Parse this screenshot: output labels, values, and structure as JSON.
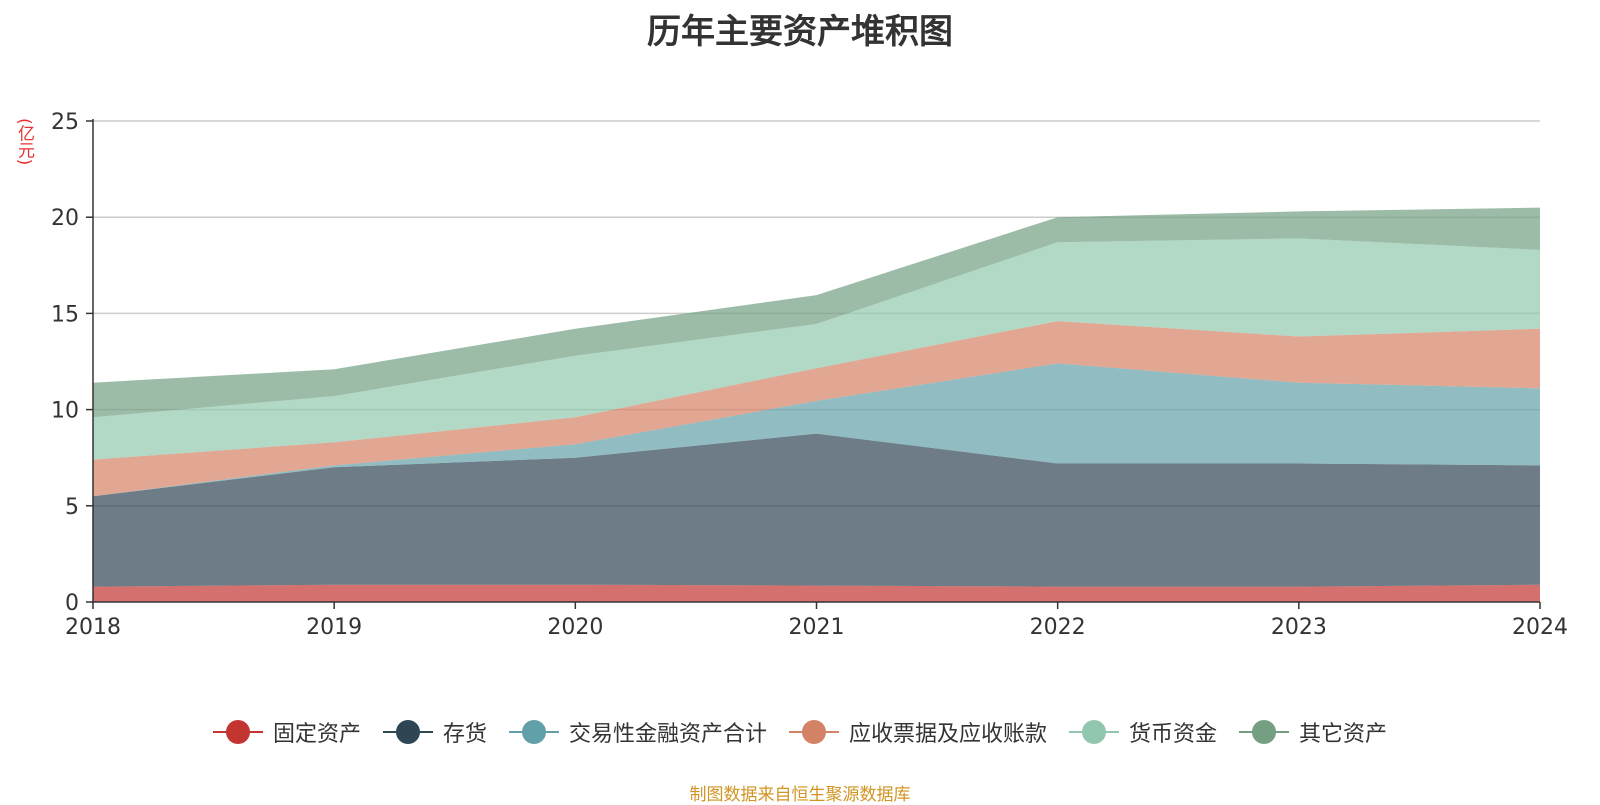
{
  "chart_data": {
    "type": "area",
    "stacked": true,
    "title": "历年主要资产堆积图",
    "y_unit": "(亿元)",
    "x": [
      "2018",
      "2019",
      "2020",
      "2021",
      "2022",
      "2023",
      "2024"
    ],
    "ylim": [
      0,
      25
    ],
    "yticks": [
      "0",
      "5",
      "10",
      "15",
      "20",
      "25"
    ],
    "grid": true,
    "legend_position": "bottom",
    "series": [
      {
        "name": "固定资产",
        "color": "#c23531",
        "values": [
          0.8,
          0.9,
          0.9,
          0.85,
          0.8,
          0.8,
          0.9
        ]
      },
      {
        "name": "存货",
        "color": "#2f4554",
        "values": [
          4.7,
          6.1,
          6.6,
          7.9,
          6.4,
          6.4,
          6.2
        ]
      },
      {
        "name": "交易性金融资产合计",
        "color": "#61a0a8",
        "values": [
          0.0,
          0.1,
          0.7,
          1.7,
          5.2,
          4.2,
          4.0
        ]
      },
      {
        "name": "应收票据及应收账款",
        "color": "#d48265",
        "values": [
          1.9,
          1.2,
          1.4,
          1.7,
          2.2,
          2.4,
          3.1
        ]
      },
      {
        "name": "货币资金",
        "color": "#91c7ae",
        "values": [
          2.2,
          2.4,
          3.2,
          2.3,
          4.1,
          5.1,
          4.1
        ]
      },
      {
        "name": "其它资产",
        "color": "#749f83",
        "values": [
          1.8,
          1.4,
          1.4,
          1.5,
          1.3,
          1.4,
          2.2
        ]
      }
    ],
    "source": "制图数据来自恒生聚源数据库"
  }
}
